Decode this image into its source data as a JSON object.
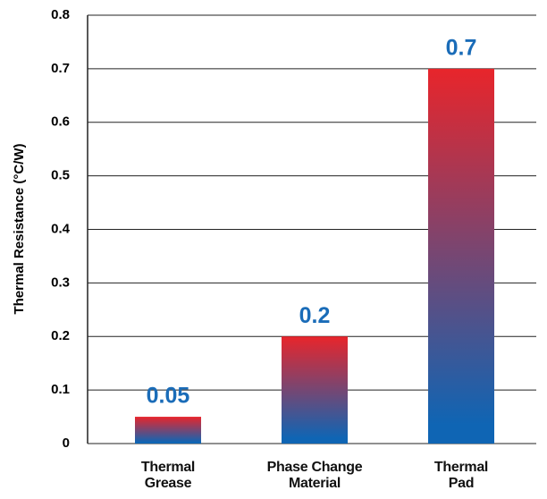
{
  "chart_data": {
    "type": "bar",
    "ylabel": "Thermal Resistance (°C/W)",
    "categories": [
      "Thermal\nGrease",
      "Phase Change\nMaterial",
      "Thermal\nPad"
    ],
    "values": [
      0.05,
      0.2,
      0.7
    ],
    "gradient": {
      "top": "#e8252b",
      "bottom": "#0f65b4"
    },
    "label_color": "#1a6cb8",
    "ylim": [
      0,
      0.8
    ],
    "yticks": [
      0,
      0.1,
      0.2,
      0.3,
      0.4,
      0.5,
      0.6,
      0.7,
      0.8
    ],
    "grid": true
  }
}
